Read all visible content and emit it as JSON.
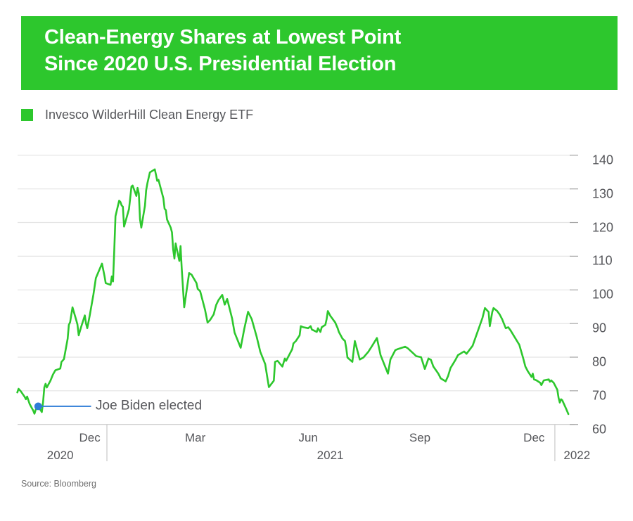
{
  "header": {
    "title_line1": "Clean-Energy Shares at Lowest Point",
    "title_line2": "Since 2020 U.S. Presidential Election"
  },
  "legend": {
    "label": "Invesco WilderHill Clean Energy ETF"
  },
  "annotation": {
    "label": "Joe Biden elected",
    "date": "2020-11-06",
    "value": 65.4
  },
  "source": {
    "label": "Source: Bloomberg"
  },
  "colors": {
    "green": "#2dc72d",
    "blue": "#2e7dd7",
    "grid": "#e4e4e4",
    "axis": "#c9c9c9",
    "right_tick": "#a3a3a3",
    "label_text": "#55565a",
    "source_text": "#6f6f6f"
  },
  "chart_data": {
    "type": "line",
    "title": "Clean-Energy Shares at Lowest Point Since 2020 U.S. Presidential Election",
    "grid": true,
    "legend_position": "top-left",
    "ylim": [
      60,
      140
    ],
    "y_ticks": [
      60,
      70,
      80,
      90,
      100,
      110,
      120,
      130,
      140
    ],
    "x_range": [
      "2020-10-17",
      "2022-01-16"
    ],
    "month_ticks": [
      {
        "label": "Dec",
        "date": "2020-12-18"
      },
      {
        "label": "Mar",
        "date": "2021-03-14"
      },
      {
        "label": "Jun",
        "date": "2021-06-14"
      },
      {
        "label": "Sep",
        "date": "2021-09-13"
      },
      {
        "label": "Dec",
        "date": "2021-12-15"
      }
    ],
    "year_boundary_ticks": [
      "2021-01-01",
      "2022-01-01"
    ],
    "year_labels": [
      {
        "label": "2020",
        "date": "2020-11-24"
      },
      {
        "label": "2021",
        "date": "2021-07-02"
      },
      {
        "label": "2022",
        "date": "2022-01-19"
      }
    ],
    "series": [
      {
        "name": "Invesco WilderHill Clean Energy ETF",
        "points": [
          [
            "2020-10-20",
            69.5
          ],
          [
            "2020-10-21",
            70.6
          ],
          [
            "2020-10-23",
            69.8
          ],
          [
            "2020-10-26",
            68.2
          ],
          [
            "2020-10-27",
            67.5
          ],
          [
            "2020-10-28",
            68.3
          ],
          [
            "2020-10-30",
            66.1
          ],
          [
            "2020-11-02",
            64.1
          ],
          [
            "2020-11-03",
            63.2
          ],
          [
            "2020-11-04",
            64.4
          ],
          [
            "2020-11-06",
            65.4
          ],
          [
            "2020-11-09",
            63.7
          ],
          [
            "2020-11-10",
            66.8
          ],
          [
            "2020-11-11",
            71.0
          ],
          [
            "2020-11-12",
            72.1
          ],
          [
            "2020-11-13",
            71.0
          ],
          [
            "2020-11-16",
            73.0
          ],
          [
            "2020-11-18",
            74.8
          ],
          [
            "2020-11-20",
            76.1
          ],
          [
            "2020-11-24",
            76.6
          ],
          [
            "2020-11-25",
            78.6
          ],
          [
            "2020-11-27",
            79.4
          ],
          [
            "2020-11-30",
            85.5
          ],
          [
            "2020-12-01",
            89.6
          ],
          [
            "2020-12-02",
            90.4
          ],
          [
            "2020-12-04",
            94.8
          ],
          [
            "2020-12-07",
            91.0
          ],
          [
            "2020-12-08",
            89.7
          ],
          [
            "2020-12-09",
            86.5
          ],
          [
            "2020-12-11",
            89.0
          ],
          [
            "2020-12-14",
            92.4
          ],
          [
            "2020-12-15",
            90.0
          ],
          [
            "2020-12-16",
            88.6
          ],
          [
            "2020-12-18",
            92.4
          ],
          [
            "2020-12-21",
            98.6
          ],
          [
            "2020-12-23",
            103.5
          ],
          [
            "2020-12-28",
            107.8
          ],
          [
            "2020-12-30",
            104.2
          ],
          [
            "2020-12-31",
            102.0
          ],
          [
            "2021-01-04",
            101.5
          ],
          [
            "2021-01-05",
            104.0
          ],
          [
            "2021-01-06",
            102.5
          ],
          [
            "2021-01-07",
            112.0
          ],
          [
            "2021-01-08",
            121.9
          ],
          [
            "2021-01-11",
            126.5
          ],
          [
            "2021-01-12",
            126.1
          ],
          [
            "2021-01-13",
            125.1
          ],
          [
            "2021-01-14",
            124.7
          ],
          [
            "2021-01-15",
            118.8
          ],
          [
            "2021-01-19",
            124.0
          ],
          [
            "2021-01-21",
            130.7
          ],
          [
            "2021-01-22",
            131.0
          ],
          [
            "2021-01-25",
            127.9
          ],
          [
            "2021-01-26",
            130.3
          ],
          [
            "2021-01-27",
            128.6
          ],
          [
            "2021-01-28",
            120.9
          ],
          [
            "2021-01-29",
            118.5
          ],
          [
            "2021-02-01",
            125.0
          ],
          [
            "2021-02-02",
            129.6
          ],
          [
            "2021-02-03",
            131.7
          ],
          [
            "2021-02-05",
            134.9
          ],
          [
            "2021-02-09",
            135.8
          ],
          [
            "2021-02-10",
            134.2
          ],
          [
            "2021-02-11",
            132.4
          ],
          [
            "2021-02-12",
            132.7
          ],
          [
            "2021-02-16",
            127.2
          ],
          [
            "2021-02-17",
            124.1
          ],
          [
            "2021-02-18",
            123.7
          ],
          [
            "2021-02-19",
            120.9
          ],
          [
            "2021-02-22",
            118.5
          ],
          [
            "2021-02-23",
            117.1
          ],
          [
            "2021-02-24",
            112.0
          ],
          [
            "2021-02-25",
            109.3
          ],
          [
            "2021-02-26",
            113.8
          ],
          [
            "2021-03-01",
            108.6
          ],
          [
            "2021-03-02",
            113.0
          ],
          [
            "2021-03-03",
            106.3
          ],
          [
            "2021-03-05",
            94.8
          ],
          [
            "2021-03-09",
            105.0
          ],
          [
            "2021-03-11",
            104.5
          ],
          [
            "2021-03-15",
            102.0
          ],
          [
            "2021-03-16",
            100.3
          ],
          [
            "2021-03-18",
            99.6
          ],
          [
            "2021-03-22",
            94.0
          ],
          [
            "2021-03-24",
            90.3
          ],
          [
            "2021-03-26",
            91.0
          ],
          [
            "2021-03-29",
            92.7
          ],
          [
            "2021-03-31",
            95.5
          ],
          [
            "2021-04-02",
            97.0
          ],
          [
            "2021-04-05",
            98.5
          ],
          [
            "2021-04-07",
            95.6
          ],
          [
            "2021-04-09",
            97.3
          ],
          [
            "2021-04-13",
            91.5
          ],
          [
            "2021-04-15",
            87.3
          ],
          [
            "2021-04-20",
            82.8
          ],
          [
            "2021-04-23",
            88.5
          ],
          [
            "2021-04-26",
            93.5
          ],
          [
            "2021-04-29",
            91.3
          ],
          [
            "2021-05-03",
            86.1
          ],
          [
            "2021-05-06",
            81.6
          ],
          [
            "2021-05-10",
            77.9
          ],
          [
            "2021-05-11",
            75.5
          ],
          [
            "2021-05-13",
            71.1
          ],
          [
            "2021-05-17",
            73.0
          ],
          [
            "2021-05-18",
            78.6
          ],
          [
            "2021-05-20",
            78.9
          ],
          [
            "2021-05-24",
            77.2
          ],
          [
            "2021-05-26",
            79.6
          ],
          [
            "2021-05-27",
            78.9
          ],
          [
            "2021-06-01",
            82.4
          ],
          [
            "2021-06-02",
            84.1
          ],
          [
            "2021-06-04",
            84.8
          ],
          [
            "2021-06-07",
            86.5
          ],
          [
            "2021-06-08",
            89.2
          ],
          [
            "2021-06-10",
            88.9
          ],
          [
            "2021-06-14",
            88.6
          ],
          [
            "2021-06-16",
            89.2
          ],
          [
            "2021-06-17",
            88.2
          ],
          [
            "2021-06-21",
            87.5
          ],
          [
            "2021-06-22",
            88.6
          ],
          [
            "2021-06-24",
            87.5
          ],
          [
            "2021-06-25",
            88.9
          ],
          [
            "2021-06-28",
            89.6
          ],
          [
            "2021-06-29",
            91.3
          ],
          [
            "2021-06-30",
            93.7
          ],
          [
            "2021-07-02",
            92.3
          ],
          [
            "2021-07-06",
            90.3
          ],
          [
            "2021-07-08",
            88.6
          ],
          [
            "2021-07-09",
            87.5
          ],
          [
            "2021-07-12",
            85.5
          ],
          [
            "2021-07-14",
            84.8
          ],
          [
            "2021-07-15",
            82.7
          ],
          [
            "2021-07-16",
            79.9
          ],
          [
            "2021-07-19",
            78.9
          ],
          [
            "2021-07-20",
            78.6
          ],
          [
            "2021-07-22",
            84.8
          ],
          [
            "2021-07-26",
            79.3
          ],
          [
            "2021-07-29",
            79.9
          ],
          [
            "2021-08-02",
            81.6
          ],
          [
            "2021-08-05",
            83.3
          ],
          [
            "2021-08-09",
            85.7
          ],
          [
            "2021-08-12",
            80.6
          ],
          [
            "2021-08-18",
            75.1
          ],
          [
            "2021-08-20",
            79.3
          ],
          [
            "2021-08-24",
            82.1
          ],
          [
            "2021-08-26",
            82.4
          ],
          [
            "2021-09-01",
            83.1
          ],
          [
            "2021-09-03",
            82.7
          ],
          [
            "2021-09-08",
            81.0
          ],
          [
            "2021-09-10",
            80.3
          ],
          [
            "2021-09-14",
            80.0
          ],
          [
            "2021-09-17",
            76.5
          ],
          [
            "2021-09-20",
            79.6
          ],
          [
            "2021-09-22",
            79.2
          ],
          [
            "2021-09-24",
            77.2
          ],
          [
            "2021-09-28",
            75.1
          ],
          [
            "2021-09-30",
            73.7
          ],
          [
            "2021-10-04",
            72.8
          ],
          [
            "2021-10-06",
            74.4
          ],
          [
            "2021-10-08",
            76.8
          ],
          [
            "2021-10-12",
            79.2
          ],
          [
            "2021-10-14",
            80.6
          ],
          [
            "2021-10-19",
            81.7
          ],
          [
            "2021-10-21",
            81.0
          ],
          [
            "2021-10-26",
            83.4
          ],
          [
            "2021-10-29",
            86.5
          ],
          [
            "2021-11-01",
            89.6
          ],
          [
            "2021-11-03",
            91.7
          ],
          [
            "2021-11-05",
            94.6
          ],
          [
            "2021-11-08",
            93.4
          ],
          [
            "2021-11-09",
            89.2
          ],
          [
            "2021-11-11",
            93.4
          ],
          [
            "2021-11-12",
            94.6
          ],
          [
            "2021-11-15",
            93.7
          ],
          [
            "2021-11-17",
            92.7
          ],
          [
            "2021-11-19",
            91.3
          ],
          [
            "2021-11-22",
            88.6
          ],
          [
            "2021-11-24",
            88.9
          ],
          [
            "2021-11-26",
            87.9
          ],
          [
            "2021-11-29",
            86.1
          ],
          [
            "2021-12-03",
            83.7
          ],
          [
            "2021-12-06",
            79.9
          ],
          [
            "2021-12-08",
            77.2
          ],
          [
            "2021-12-10",
            75.8
          ],
          [
            "2021-12-13",
            74.1
          ],
          [
            "2021-12-14",
            75.1
          ],
          [
            "2021-12-15",
            73.4
          ],
          [
            "2021-12-17",
            73.1
          ],
          [
            "2021-12-20",
            72.4
          ],
          [
            "2021-12-21",
            71.7
          ],
          [
            "2021-12-23",
            73.1
          ],
          [
            "2021-12-27",
            73.4
          ],
          [
            "2021-12-28",
            72.7
          ],
          [
            "2021-12-29",
            73.1
          ],
          [
            "2021-12-31",
            72.4
          ],
          [
            "2022-01-03",
            70.3
          ],
          [
            "2022-01-04",
            67.9
          ],
          [
            "2022-01-05",
            66.5
          ],
          [
            "2022-01-06",
            67.5
          ],
          [
            "2022-01-07",
            67.2
          ],
          [
            "2022-01-10",
            64.8
          ],
          [
            "2022-01-12",
            63.1
          ]
        ]
      }
    ]
  }
}
